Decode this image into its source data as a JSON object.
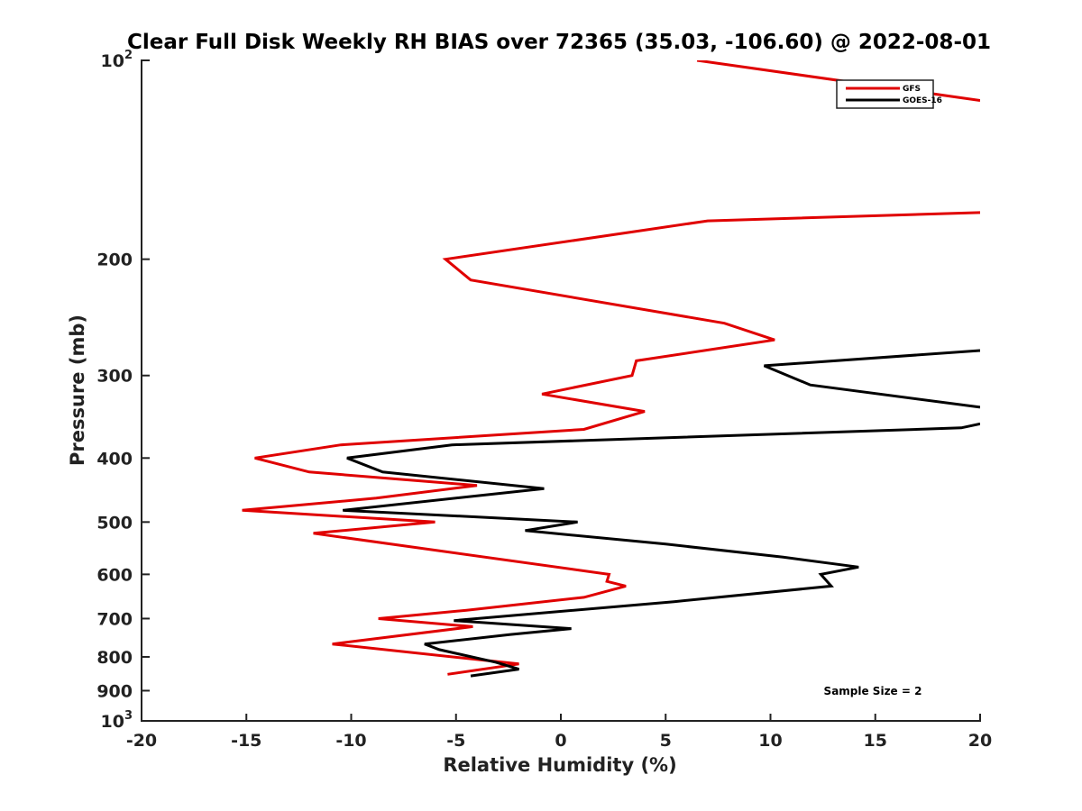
{
  "chart_data": {
    "type": "line",
    "title": "Clear Full Disk Weekly RH BIAS over 72365 (35.03, -106.60) @ 2022-08-01",
    "xlabel": "Relative Humidity (%)",
    "ylabel": "Pressure (mb)",
    "xlim": [
      -20,
      20
    ],
    "ylim": [
      100,
      1000
    ],
    "y_scale": "log",
    "y_reversed": true,
    "grid": false,
    "legend_position": "top-right",
    "x_ticks": [
      "-20",
      "-15",
      "-10",
      "-5",
      "0",
      "5",
      "10",
      "15",
      "20"
    ],
    "y_ticks": [
      {
        "value": 100,
        "base": "10",
        "exp": "2"
      },
      {
        "value": 200,
        "label": "200"
      },
      {
        "value": 300,
        "label": "300"
      },
      {
        "value": 400,
        "label": "400"
      },
      {
        "value": 500,
        "label": "500"
      },
      {
        "value": 600,
        "label": "600"
      },
      {
        "value": 700,
        "label": "700"
      },
      {
        "value": 800,
        "label": "800"
      },
      {
        "value": 900,
        "label": "900"
      },
      {
        "value": 1000,
        "base": "10",
        "exp": "3"
      }
    ],
    "annotation": "Sample Size = 2",
    "series": [
      {
        "name": "GFS",
        "color": "#e00000",
        "points": [
          [
            6.5,
            100
          ],
          [
            20,
            115
          ],
          [
            null,
            null
          ],
          [
            20,
            170
          ],
          [
            7,
            175
          ],
          [
            -5.5,
            200
          ],
          [
            -4.3,
            215
          ],
          [
            7.8,
            250
          ],
          [
            10.2,
            265
          ],
          [
            3.6,
            285
          ],
          [
            3.4,
            300
          ],
          [
            -0.9,
            320
          ],
          [
            4,
            340
          ],
          [
            1.1,
            362
          ],
          [
            -10.5,
            382
          ],
          [
            -14.6,
            400
          ],
          [
            -12,
            420
          ],
          [
            -4,
            440
          ],
          [
            -8.8,
            460
          ],
          [
            -15.2,
            480
          ],
          [
            -6,
            500
          ],
          [
            -11.8,
            520
          ],
          [
            2.3,
            600
          ],
          [
            2.2,
            615
          ],
          [
            3.1,
            625
          ],
          [
            1.1,
            650
          ],
          [
            -4.5,
            680
          ],
          [
            -8.7,
            700
          ],
          [
            -4.2,
            720
          ],
          [
            -10.9,
            765
          ],
          [
            -2,
            820
          ],
          [
            -5.4,
            850
          ]
        ]
      },
      {
        "name": "GOES-16",
        "color": "#000000",
        "points": [
          [
            20,
            275
          ],
          [
            9.7,
            290
          ],
          [
            11.9,
            310
          ],
          [
            20,
            335
          ],
          [
            null,
            null
          ],
          [
            20,
            355
          ],
          [
            19.1,
            360
          ],
          [
            -5.2,
            382
          ],
          [
            -10.2,
            400
          ],
          [
            -8.5,
            420
          ],
          [
            -0.8,
            445
          ],
          [
            -10.4,
            480
          ],
          [
            0.8,
            500
          ],
          [
            -1.7,
            515
          ],
          [
            5,
            540
          ],
          [
            10.6,
            565
          ],
          [
            14.2,
            585
          ],
          [
            12.4,
            600
          ],
          [
            12.9,
            625
          ],
          [
            5.4,
            660
          ],
          [
            -5.1,
            705
          ],
          [
            0.5,
            725
          ],
          [
            -2.4,
            740
          ],
          [
            -6.5,
            765
          ],
          [
            -5.8,
            780
          ],
          [
            -3.1,
            815
          ],
          [
            -2,
            835
          ],
          [
            -4.3,
            855
          ]
        ]
      }
    ]
  }
}
